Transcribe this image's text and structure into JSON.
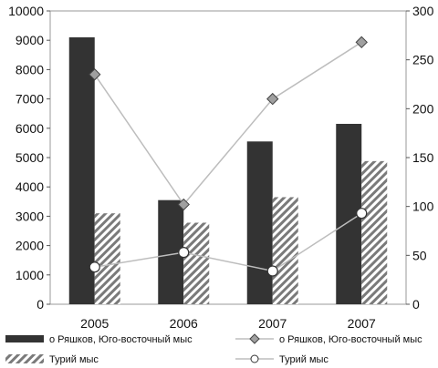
{
  "chart_data": {
    "type": "bar+line",
    "categories": [
      "2005",
      "2006",
      "2007",
      "2007"
    ],
    "left_axis": {
      "ylim": [
        0,
        10000
      ],
      "ticks": [
        "0",
        "1000",
        "2000",
        "3000",
        "4000",
        "5000",
        "6000",
        "7000",
        "8000",
        "9000",
        "10000"
      ]
    },
    "right_axis": {
      "ylim": [
        0,
        300
      ],
      "ticks": [
        "0",
        "50",
        "100",
        "150",
        "200",
        "250",
        "300"
      ]
    },
    "series": [
      {
        "name": "о Ряшков, Юго-восточный мыс",
        "kind": "bar",
        "axis": "left",
        "color": "#333333",
        "values": [
          9100,
          3550,
          5550,
          6150
        ]
      },
      {
        "name": "Турий мыс",
        "kind": "bar",
        "axis": "left",
        "pattern": "hatch",
        "values": [
          3100,
          2780,
          3650,
          4880
        ]
      },
      {
        "name": "о Ряшков, Юго-восточный мыс",
        "kind": "line",
        "axis": "right",
        "marker": "diamond",
        "color": "#999999",
        "values": [
          235,
          102,
          210,
          268
        ]
      },
      {
        "name": "Турий мыс",
        "kind": "line",
        "axis": "right",
        "marker": "circle",
        "color": "#888888",
        "values": [
          38,
          53,
          34,
          93
        ]
      }
    ],
    "legend": {
      "placement": "bottom",
      "items": [
        {
          "label": "о Ряшков, Юго-восточный мыс",
          "symbol": "dark-bar"
        },
        {
          "label": "о Ряшков, Юго-восточный мыс",
          "symbol": "diamond-line"
        },
        {
          "label": "Турий мыс",
          "symbol": "hatch-bar"
        },
        {
          "label": "Турий мыс",
          "symbol": "circle-line"
        }
      ]
    }
  }
}
